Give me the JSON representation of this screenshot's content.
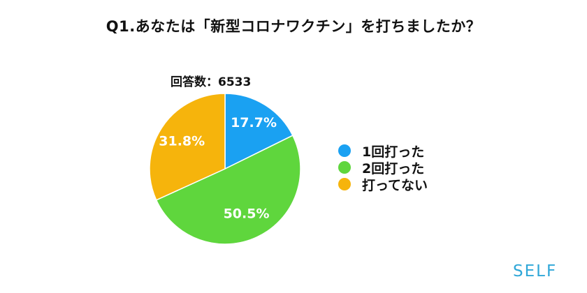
{
  "header": {
    "title": "Q1.あなたは「新型コロナワクチン」を打ちましたか？",
    "respondents_label": "回答数：6533"
  },
  "branding": {
    "logo_text": "SELF",
    "logo_color": "#2fa7d8"
  },
  "chart_data": {
    "type": "pie",
    "start": "12 o'clock, clockwise",
    "slices": [
      {
        "name": "1回打った",
        "value": 17.7,
        "label": "17.7%",
        "color": "#1aa1f2"
      },
      {
        "name": "2回打った",
        "value": 50.5,
        "label": "50.5%",
        "color": "#5fd63d"
      },
      {
        "name": "打ってない",
        "value": 31.8,
        "label": "31.8%",
        "color": "#f6b40c"
      }
    ],
    "legend_position": "right"
  }
}
